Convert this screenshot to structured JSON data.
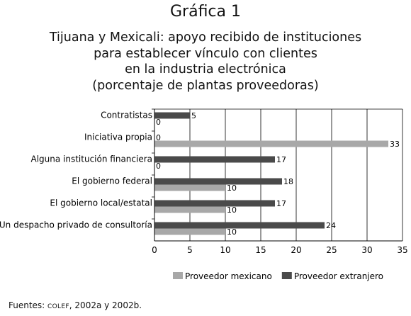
{
  "figure_label": "Gráfica 1",
  "source": {
    "prefix": "Fuentes: ",
    "org": "COLEF",
    "suffix": ", 2002a y 2002b."
  },
  "colors": {
    "series_mexicano": "#a8a8a8",
    "series_extranjero": "#4a4a4a",
    "grid": "#000000"
  },
  "chart_data": {
    "type": "bar",
    "orientation": "horizontal",
    "title_lines": [
      "Tijuana y Mexicali: apoyo recibido de instituciones",
      "para establecer vínculo con clientes",
      "en la industria electrónica",
      "(porcentaje de plantas proveedoras)"
    ],
    "categories": [
      "Contratistas",
      "Iniciativa propia",
      "Alguna institución financiera",
      "El gobierno federal",
      "El gobierno local/estatal",
      "Un despacho privado de consultoría"
    ],
    "series": [
      {
        "name": "Proveedor mexicano",
        "values": [
          0,
          33,
          0,
          10,
          10,
          10
        ]
      },
      {
        "name": "Proveedor extranjero",
        "values": [
          5,
          0,
          17,
          18,
          17,
          24
        ]
      }
    ],
    "xlim": [
      0,
      35
    ],
    "xticks": [
      0,
      5,
      10,
      15,
      20,
      25,
      30,
      35
    ],
    "grid": "vertical",
    "legend": "bottom"
  }
}
